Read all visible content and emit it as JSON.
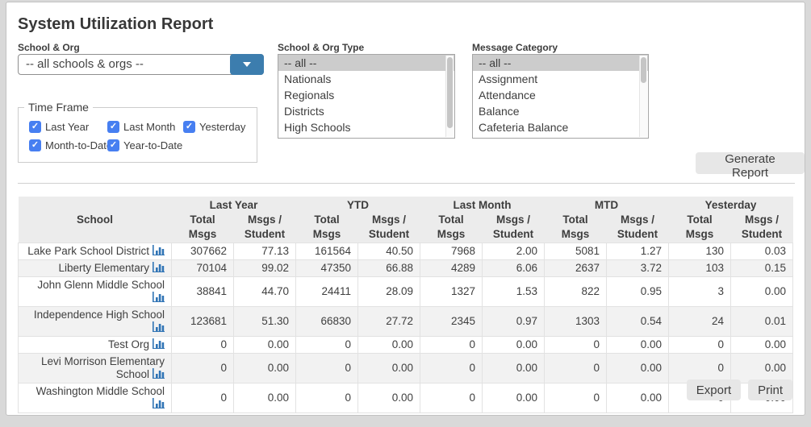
{
  "page": {
    "title": "System Utilization Report"
  },
  "colors": {
    "dropdown_blue": "#3c7dae",
    "checkbox_blue": "#477ff1",
    "chart_link_blue": "#3074b5",
    "selected_option_bg": "#cccccc",
    "table_header_bg": "#ececec",
    "alt_row_bg": "#f2f2f2"
  },
  "icons": {
    "check": "✓"
  },
  "filters": {
    "school_org": {
      "label": "School & Org",
      "selected": "-- all schools & orgs --"
    },
    "school_org_type": {
      "label": "School & Org Type",
      "selected": "-- all --",
      "options": [
        "-- all --",
        "Nationals",
        "Regionals",
        "Districts",
        "High Schools"
      ]
    },
    "message_category": {
      "label": "Message Category",
      "selected": "-- all --",
      "options": [
        "-- all --",
        "Assignment",
        "Attendance",
        "Balance",
        "Cafeteria Balance"
      ]
    },
    "time_frame": {
      "legend": "Time Frame",
      "options": [
        {
          "label": "Last Year",
          "checked": true
        },
        {
          "label": "Last Month",
          "checked": true
        },
        {
          "label": "Yesterday",
          "checked": true
        },
        {
          "label": "Month-to-Date",
          "checked": true
        },
        {
          "label": "Year-to-Date",
          "checked": true
        }
      ]
    }
  },
  "buttons": {
    "generate": "Generate Report",
    "export": "Export",
    "print": "Print"
  },
  "report_table": {
    "school_header": "School",
    "groups": [
      "Last Year",
      "YTD",
      "Last Month",
      "MTD",
      "Yesterday"
    ],
    "sub_headers": [
      "Total Msgs",
      "Msgs / Student"
    ],
    "rows": [
      {
        "school": "Lake Park School District",
        "values": [
          "307662",
          "77.13",
          "161564",
          "40.50",
          "7968",
          "2.00",
          "5081",
          "1.27",
          "130",
          "0.03"
        ]
      },
      {
        "school": "Liberty Elementary",
        "values": [
          "70104",
          "99.02",
          "47350",
          "66.88",
          "4289",
          "6.06",
          "2637",
          "3.72",
          "103",
          "0.15"
        ]
      },
      {
        "school": "John Glenn Middle School",
        "values": [
          "38841",
          "44.70",
          "24411",
          "28.09",
          "1327",
          "1.53",
          "822",
          "0.95",
          "3",
          "0.00"
        ]
      },
      {
        "school": "Independence High School",
        "values": [
          "123681",
          "51.30",
          "66830",
          "27.72",
          "2345",
          "0.97",
          "1303",
          "0.54",
          "24",
          "0.01"
        ]
      },
      {
        "school": "Test Org",
        "values": [
          "0",
          "0.00",
          "0",
          "0.00",
          "0",
          "0.00",
          "0",
          "0.00",
          "0",
          "0.00"
        ]
      },
      {
        "school": "Levi Morrison Elementary School",
        "values": [
          "0",
          "0.00",
          "0",
          "0.00",
          "0",
          "0.00",
          "0",
          "0.00",
          "0",
          "0.00"
        ]
      },
      {
        "school": "Washington Middle School",
        "values": [
          "0",
          "0.00",
          "0",
          "0.00",
          "0",
          "0.00",
          "0",
          "0.00",
          "0",
          "0.00"
        ]
      }
    ]
  }
}
